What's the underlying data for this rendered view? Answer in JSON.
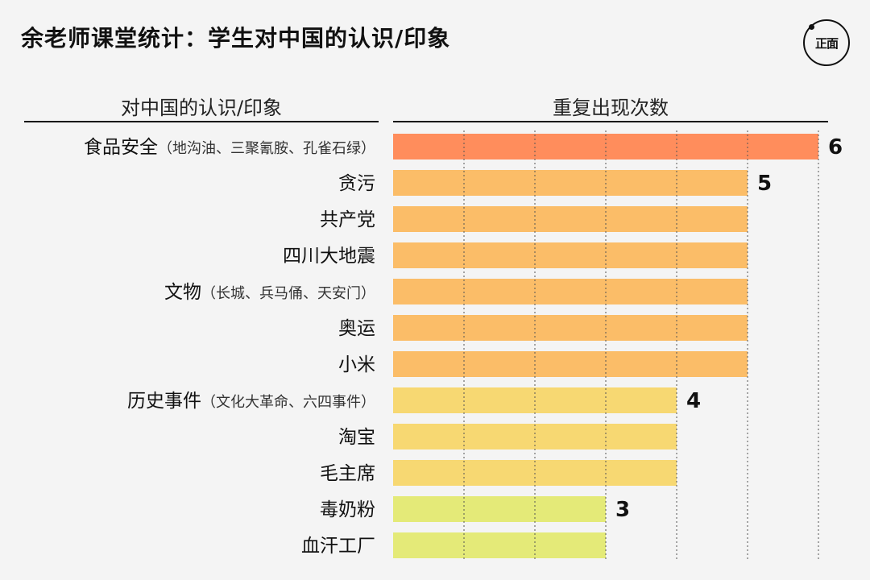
{
  "title": "余老师课堂统计：学生对中国的认识/印象",
  "logo_text": "正面",
  "chart_data": {
    "type": "bar",
    "orientation": "horizontal",
    "category_header": "对中国的认识/印象",
    "value_header": "重复出现次数",
    "xlim": [
      0,
      6
    ],
    "grid": "vertical dotted",
    "categories": [
      {
        "main": "食品安全",
        "sub": "（地沟油、三聚氰胺、孔雀石绿）"
      },
      {
        "main": "贪污",
        "sub": ""
      },
      {
        "main": "共产党",
        "sub": ""
      },
      {
        "main": "四川大地震",
        "sub": ""
      },
      {
        "main": "文物",
        "sub": "（长城、兵马俑、天安门）"
      },
      {
        "main": "奥运",
        "sub": ""
      },
      {
        "main": "小米",
        "sub": ""
      },
      {
        "main": "历史事件",
        "sub": "（文化大革命、六四事件）"
      },
      {
        "main": "淘宝",
        "sub": ""
      },
      {
        "main": "毛主席",
        "sub": ""
      },
      {
        "main": "毒奶粉",
        "sub": ""
      },
      {
        "main": "血汗工厂",
        "sub": ""
      }
    ],
    "values": [
      6,
      5,
      5,
      5,
      5,
      5,
      5,
      4,
      4,
      4,
      3,
      3
    ],
    "value_labels": [
      "6",
      "5",
      "",
      "",
      "",
      "",
      "",
      "4",
      "",
      "",
      "3",
      ""
    ],
    "colors": {
      "6": "#ff8d5c",
      "5": "#fbbd68",
      "4": "#f7d872",
      "3": "#e4ea78"
    }
  }
}
